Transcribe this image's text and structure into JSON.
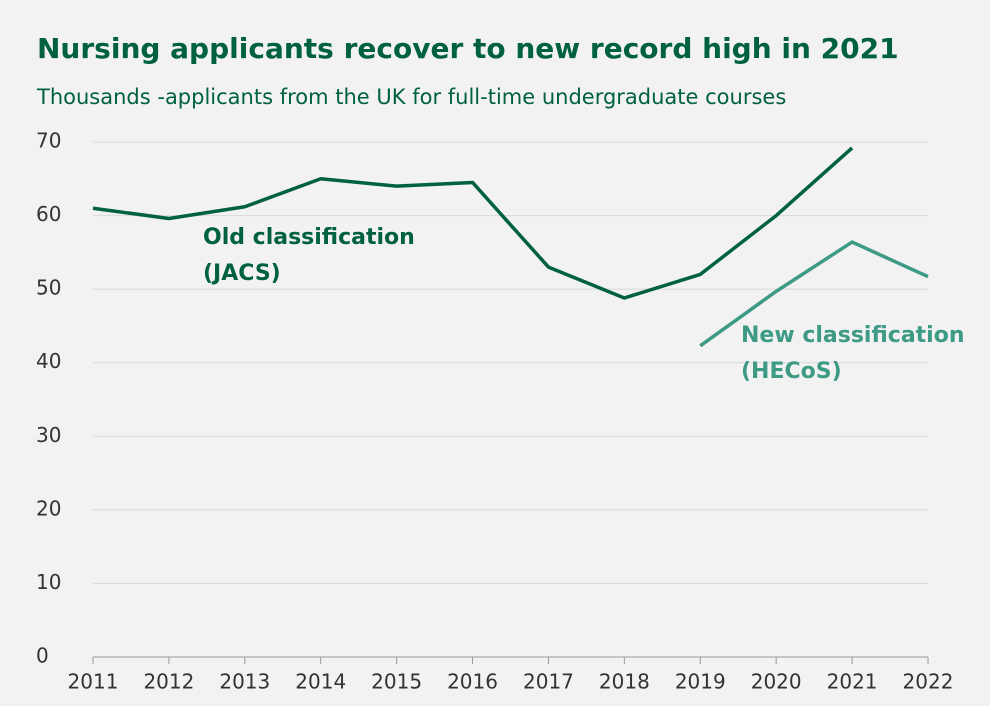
{
  "chart_data": {
    "type": "line",
    "title": "Nursing applicants recover to new record high in 2021",
    "subtitle": "Thousands -applicants from the UK for full-time undergraduate courses",
    "x": [
      2011,
      2012,
      2013,
      2014,
      2015,
      2016,
      2017,
      2018,
      2019,
      2020,
      2021,
      2022
    ],
    "xlim": [
      2011,
      2022
    ],
    "xticks": [
      2011,
      2012,
      2013,
      2014,
      2015,
      2016,
      2017,
      2018,
      2019,
      2020,
      2021,
      2022
    ],
    "ylim": [
      0,
      70
    ],
    "yticks": [
      0,
      10,
      20,
      30,
      40,
      50,
      60,
      70
    ],
    "grid": true,
    "series": [
      {
        "name": "Old classification (JACS)",
        "color": "#00613f",
        "values": [
          61,
          59.6,
          61.2,
          65,
          64,
          64.5,
          53,
          48.8,
          52,
          60,
          69.2,
          null
        ]
      },
      {
        "name": "New classification (HECoS)",
        "color": "#3d9a85",
        "values": [
          null,
          null,
          null,
          null,
          null,
          null,
          null,
          null,
          42.3,
          49.7,
          56.4,
          51.7
        ]
      }
    ],
    "annotations": [
      {
        "lines": [
          "Old classification",
          "(JACS)"
        ],
        "color": "#00613f"
      },
      {
        "lines": [
          "New classification",
          "(HECoS)"
        ],
        "color": "#3d9a85"
      }
    ]
  }
}
